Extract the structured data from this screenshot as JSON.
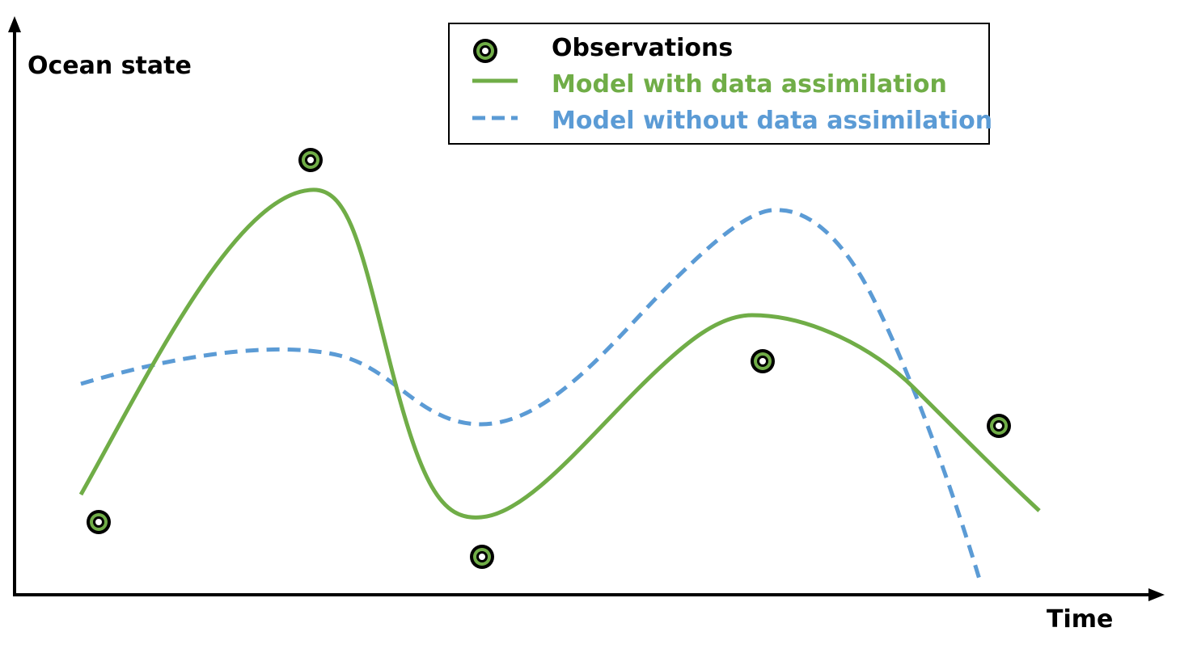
{
  "axes": {
    "y_label": "Ocean state",
    "x_label": "Time"
  },
  "legend": {
    "observations": "Observations",
    "with_da": "Model with data assimilation",
    "without_da": "Model without data assimilation"
  },
  "colors": {
    "with_da": "#70ad47",
    "without_da": "#5b9bd5",
    "observation_ring": "#70ad47",
    "axis": "#000000"
  }
}
